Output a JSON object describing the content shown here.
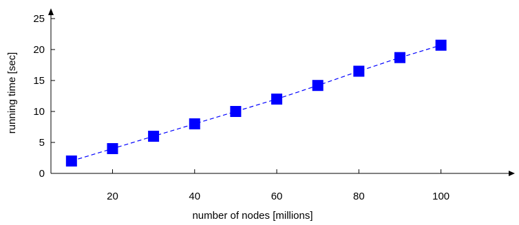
{
  "chart_data": {
    "type": "line",
    "title": "",
    "xlabel": "number of nodes [millions]",
    "ylabel": "running time [sec]",
    "xlim": [
      5,
      118
    ],
    "ylim": [
      0,
      26
    ],
    "xticks": [
      20,
      40,
      60,
      80,
      100
    ],
    "yticks": [
      0,
      5,
      10,
      15,
      20,
      25
    ],
    "grid": false,
    "legend": "none",
    "series": [
      {
        "line_style": "dashed",
        "marker": "square",
        "color": "#0000ff",
        "x": [
          10,
          20,
          30,
          40,
          50,
          60,
          70,
          80,
          90,
          100
        ],
        "y": [
          2.0,
          4.0,
          6.0,
          8.0,
          10.0,
          12.0,
          14.2,
          16.5,
          18.7,
          20.7
        ]
      }
    ]
  }
}
